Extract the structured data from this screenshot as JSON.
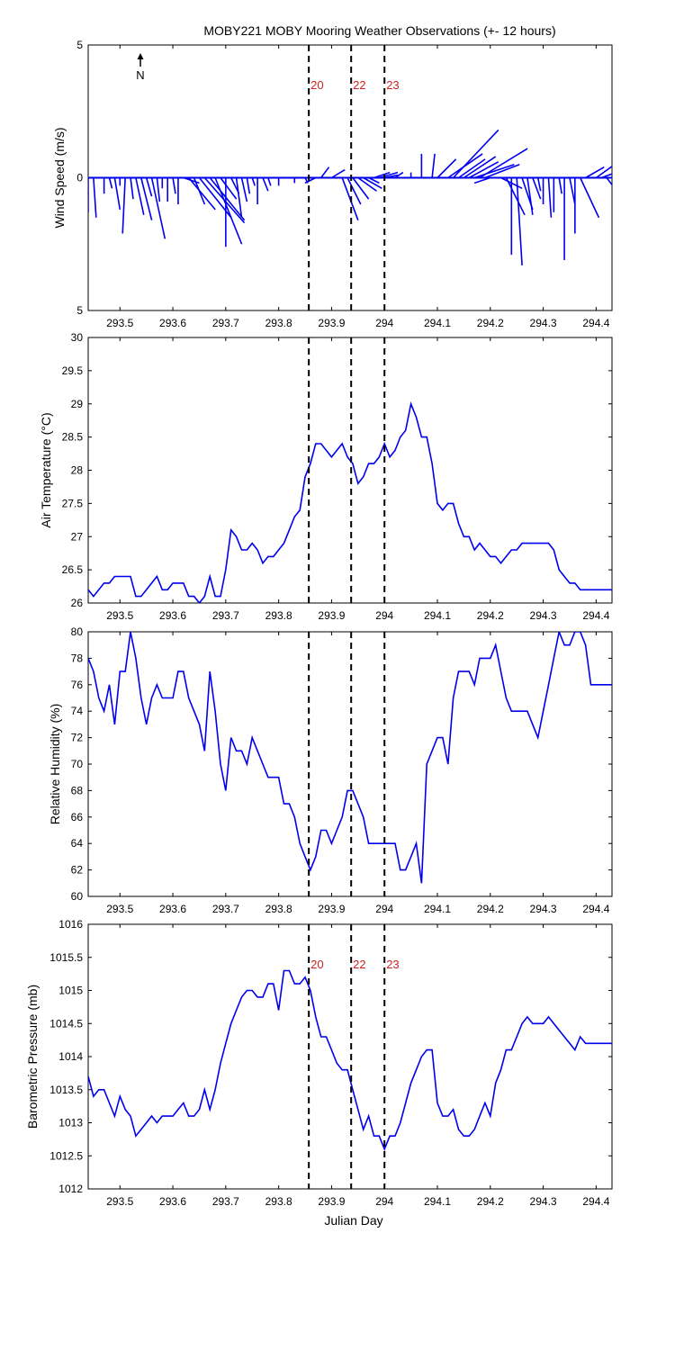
{
  "figure_title": "MOBY221 MOBY Mooring Weather Observations (+- 12 hours)",
  "north_label": "N",
  "x_axis_label": "Julian Day",
  "x_ticks": [
    "293.5",
    "293.6",
    "293.7",
    "293.8",
    "293.9",
    "294",
    "294.1",
    "294.2",
    "294.3",
    "294.4"
  ],
  "event_lines": [
    {
      "label": "20",
      "x": 293.857
    },
    {
      "label": "22",
      "x": 293.937
    },
    {
      "label": "23",
      "x": 294.0
    }
  ],
  "colors": {
    "series": "#0000ee",
    "event_label": "#cc2222",
    "axis": "#000000"
  },
  "chart_data": [
    {
      "type": "line",
      "name": "wind",
      "ylabel": "Wind Speed (m/s)",
      "yticks": [
        "5",
        "0",
        "5"
      ],
      "xlim": [
        293.44,
        294.43
      ],
      "ylim": [
        -5,
        5
      ],
      "show_event_labels": true,
      "note": "wind vectors (stick plot), each point [day, u, v]",
      "vectors": [
        [
          293.44,
          0.0,
          -1.3
        ],
        [
          293.45,
          0.1,
          -1.5
        ],
        [
          293.47,
          0.0,
          -0.6
        ],
        [
          293.48,
          0.1,
          -0.4
        ],
        [
          293.49,
          0.2,
          -1.2
        ],
        [
          293.5,
          0.0,
          -0.3
        ],
        [
          293.51,
          -0.1,
          -2.1
        ],
        [
          293.52,
          0.1,
          -0.8
        ],
        [
          293.53,
          0.3,
          -1.4
        ],
        [
          293.54,
          0.4,
          -1.6
        ],
        [
          293.55,
          0.2,
          -0.7
        ],
        [
          293.56,
          0.5,
          -2.3
        ],
        [
          293.57,
          0.1,
          -0.9
        ],
        [
          293.58,
          0.0,
          -0.4
        ],
        [
          293.59,
          0.0,
          -0.9
        ],
        [
          293.6,
          0.1,
          -0.6
        ],
        [
          293.61,
          0.0,
          -1.0
        ],
        [
          293.62,
          0.6,
          -0.2
        ],
        [
          293.63,
          1.0,
          -1.2
        ],
        [
          293.64,
          0.4,
          -1.0
        ],
        [
          293.65,
          1.2,
          -1.5
        ],
        [
          293.66,
          1.5,
          -1.7
        ],
        [
          293.67,
          1.3,
          -1.6
        ],
        [
          293.68,
          1.0,
          -2.5
        ],
        [
          293.69,
          0.6,
          -0.8
        ],
        [
          293.7,
          0.0,
          -2.6
        ],
        [
          293.71,
          0.3,
          -0.6
        ],
        [
          293.72,
          0.2,
          -1.5
        ],
        [
          293.73,
          0.2,
          -0.9
        ],
        [
          293.74,
          0.1,
          -0.6
        ],
        [
          293.75,
          0.1,
          -0.3
        ],
        [
          293.76,
          0.0,
          -1.0
        ],
        [
          293.77,
          0.2,
          -0.5
        ],
        [
          293.78,
          0.1,
          -0.3
        ],
        [
          293.8,
          0.0,
          -0.3
        ],
        [
          293.83,
          0.0,
          -0.2
        ],
        [
          293.85,
          0.1,
          -0.2
        ],
        [
          293.87,
          -0.4,
          -0.2
        ],
        [
          293.88,
          0.3,
          0.4
        ],
        [
          293.9,
          0.5,
          0.3
        ],
        [
          293.92,
          0.6,
          -1.6
        ],
        [
          293.93,
          0.5,
          -1.0
        ],
        [
          293.94,
          0.6,
          -0.8
        ],
        [
          293.95,
          0.7,
          -0.5
        ],
        [
          293.96,
          0.7,
          -0.4
        ],
        [
          293.97,
          0.4,
          -0.2
        ],
        [
          293.98,
          0.6,
          0.2
        ],
        [
          293.99,
          0.7,
          0.2
        ],
        [
          294.0,
          0.5,
          0.1
        ],
        [
          294.02,
          0.3,
          0.2
        ],
        [
          294.05,
          0.0,
          0.2
        ],
        [
          294.07,
          0.0,
          0.9
        ],
        [
          294.09,
          0.1,
          0.9
        ],
        [
          294.1,
          0.7,
          0.7
        ],
        [
          294.12,
          1.3,
          0.9
        ],
        [
          294.13,
          1.7,
          1.8
        ],
        [
          294.14,
          1.0,
          0.7
        ],
        [
          294.15,
          1.2,
          0.8
        ],
        [
          294.16,
          1.1,
          0.6
        ],
        [
          294.17,
          1.5,
          0.5
        ],
        [
          294.18,
          1.8,
          1.1
        ],
        [
          294.19,
          1.3,
          0.5
        ],
        [
          294.2,
          -0.6,
          -0.2
        ],
        [
          294.22,
          0.8,
          -0.4
        ],
        [
          294.23,
          0.7,
          -1.4
        ],
        [
          294.24,
          0.0,
          -2.9
        ],
        [
          294.25,
          0.2,
          -3.3
        ],
        [
          294.26,
          0.4,
          -1.2
        ],
        [
          294.27,
          0.2,
          -1.4
        ],
        [
          294.28,
          0.3,
          -0.8
        ],
        [
          294.29,
          0.1,
          -0.5
        ],
        [
          294.3,
          0.0,
          -1.0
        ],
        [
          294.31,
          0.1,
          -1.5
        ],
        [
          294.32,
          0.0,
          -1.3
        ],
        [
          294.33,
          0.1,
          -0.6
        ],
        [
          294.34,
          0.0,
          -3.1
        ],
        [
          294.35,
          0.2,
          -1.0
        ],
        [
          294.36,
          0.0,
          -2.1
        ],
        [
          294.37,
          0.7,
          -1.5
        ],
        [
          294.38,
          0.7,
          0.4
        ],
        [
          294.4,
          0.7,
          0.5
        ],
        [
          294.41,
          1.1,
          0.4
        ],
        [
          294.42,
          0.6,
          -0.8
        ],
        [
          294.43,
          0.5,
          -1.0
        ]
      ]
    },
    {
      "type": "line",
      "name": "air_temperature",
      "ylabel": "Air Temperature (°C)",
      "yticks": [
        "26",
        "26.5",
        "27",
        "27.5",
        "28",
        "28.5",
        "29",
        "29.5",
        "30"
      ],
      "xlim": [
        293.44,
        294.43
      ],
      "ylim": [
        26,
        30
      ],
      "show_event_labels": false,
      "x": [
        293.44,
        293.45,
        293.47,
        293.48,
        293.49,
        293.5,
        293.52,
        293.53,
        293.54,
        293.55,
        293.56,
        293.57,
        293.58,
        293.59,
        293.6,
        293.61,
        293.62,
        293.63,
        293.64,
        293.65,
        293.66,
        293.67,
        293.68,
        293.69,
        293.7,
        293.71,
        293.72,
        293.73,
        293.74,
        293.75,
        293.76,
        293.77,
        293.78,
        293.79,
        293.8,
        293.81,
        293.82,
        293.83,
        293.84,
        293.85,
        293.86,
        293.87,
        293.88,
        293.89,
        293.9,
        293.91,
        293.92,
        293.93,
        293.94,
        293.95,
        293.96,
        293.97,
        293.98,
        293.99,
        294.0,
        294.01,
        294.02,
        294.03,
        294.04,
        294.05,
        294.06,
        294.07,
        294.08,
        294.09,
        294.1,
        294.11,
        294.12,
        294.13,
        294.14,
        294.15,
        294.16,
        294.17,
        294.18,
        294.19,
        294.2,
        294.21,
        294.22,
        294.23,
        294.24,
        294.25,
        294.26,
        294.27,
        294.28,
        294.29,
        294.3,
        294.31,
        294.32,
        294.33,
        294.34,
        294.35,
        294.36,
        294.37,
        294.38,
        294.39,
        294.4,
        294.41,
        294.42,
        294.43
      ],
      "values": [
        26.2,
        26.1,
        26.3,
        26.3,
        26.4,
        26.4,
        26.4,
        26.1,
        26.1,
        26.2,
        26.3,
        26.4,
        26.2,
        26.2,
        26.3,
        26.3,
        26.3,
        26.1,
        26.1,
        26.0,
        26.1,
        26.4,
        26.1,
        26.1,
        26.5,
        27.1,
        27.0,
        26.8,
        26.8,
        26.9,
        26.8,
        26.6,
        26.7,
        26.7,
        26.8,
        26.9,
        27.1,
        27.3,
        27.4,
        27.9,
        28.1,
        28.4,
        28.4,
        28.3,
        28.2,
        28.3,
        28.4,
        28.2,
        28.1,
        27.8,
        27.9,
        28.1,
        28.1,
        28.2,
        28.4,
        28.2,
        28.3,
        28.5,
        28.6,
        29.0,
        28.8,
        28.5,
        28.5,
        28.1,
        27.5,
        27.4,
        27.5,
        27.5,
        27.2,
        27.0,
        27.0,
        26.8,
        26.9,
        26.8,
        26.7,
        26.7,
        26.6,
        26.7,
        26.8,
        26.8,
        26.9,
        26.9,
        26.9,
        26.9,
        26.9,
        26.9,
        26.8,
        26.5,
        26.4,
        26.3,
        26.3,
        26.2,
        26.2,
        26.2,
        26.2,
        26.2,
        26.2,
        26.2
      ]
    },
    {
      "type": "line",
      "name": "relative_humidity",
      "ylabel": "Relative Humidity (%)",
      "yticks": [
        "60",
        "62",
        "64",
        "66",
        "68",
        "70",
        "72",
        "74",
        "76",
        "78",
        "80"
      ],
      "xlim": [
        293.44,
        294.43
      ],
      "ylim": [
        60,
        80
      ],
      "show_event_labels": false,
      "x": [
        293.44,
        293.45,
        293.46,
        293.47,
        293.48,
        293.49,
        293.5,
        293.51,
        293.52,
        293.53,
        293.54,
        293.55,
        293.56,
        293.57,
        293.58,
        293.59,
        293.6,
        293.61,
        293.62,
        293.63,
        293.64,
        293.65,
        293.66,
        293.67,
        293.68,
        293.69,
        293.7,
        293.71,
        293.72,
        293.73,
        293.74,
        293.75,
        293.76,
        293.77,
        293.78,
        293.79,
        293.8,
        293.81,
        293.82,
        293.83,
        293.84,
        293.85,
        293.86,
        293.87,
        293.88,
        293.89,
        293.9,
        293.91,
        293.92,
        293.93,
        293.94,
        293.95,
        293.96,
        293.97,
        293.98,
        293.99,
        294.0,
        294.01,
        294.02,
        294.03,
        294.04,
        294.05,
        294.06,
        294.07,
        294.08,
        294.09,
        294.1,
        294.11,
        294.12,
        294.13,
        294.14,
        294.15,
        294.16,
        294.17,
        294.18,
        294.19,
        294.2,
        294.21,
        294.22,
        294.23,
        294.24,
        294.25,
        294.26,
        294.27,
        294.28,
        294.29,
        294.3,
        294.31,
        294.32,
        294.33,
        294.34,
        294.35,
        294.36,
        294.37,
        294.38,
        294.39,
        294.4,
        294.41,
        294.42,
        294.43
      ],
      "values": [
        78,
        77,
        75,
        74,
        76,
        73,
        77,
        77,
        80,
        78,
        75,
        73,
        75,
        76,
        75,
        75,
        75,
        77,
        77,
        75,
        74,
        73,
        71,
        77,
        74,
        70,
        68,
        72,
        71,
        71,
        70,
        72,
        71,
        70,
        69,
        69,
        69,
        67,
        67,
        66,
        64,
        63,
        62,
        63,
        65,
        65,
        64,
        65,
        66,
        68,
        68,
        67,
        66,
        64,
        64,
        64,
        64,
        64,
        64,
        62,
        62,
        63,
        64,
        61,
        70,
        71,
        72,
        72,
        70,
        75,
        77,
        77,
        77,
        76,
        78,
        78,
        78,
        79,
        77,
        75,
        74,
        74,
        74,
        74,
        73,
        72,
        74,
        76,
        78,
        80,
        79,
        79,
        80,
        80,
        79,
        76,
        76,
        76,
        76,
        76
      ]
    },
    {
      "type": "line",
      "name": "barometric_pressure",
      "ylabel": "Barometric Pressure (mb)",
      "yticks": [
        "1012",
        "1012.5",
        "1013",
        "1013.5",
        "1014",
        "1014.5",
        "1015",
        "1015.5",
        "1016"
      ],
      "xlim": [
        293.44,
        294.43
      ],
      "ylim": [
        1012,
        1016
      ],
      "show_event_labels": true,
      "x": [
        293.44,
        293.45,
        293.46,
        293.47,
        293.48,
        293.49,
        293.5,
        293.51,
        293.52,
        293.53,
        293.54,
        293.55,
        293.56,
        293.57,
        293.58,
        293.59,
        293.6,
        293.61,
        293.62,
        293.63,
        293.64,
        293.65,
        293.66,
        293.67,
        293.68,
        293.69,
        293.7,
        293.71,
        293.72,
        293.73,
        293.74,
        293.75,
        293.76,
        293.77,
        293.78,
        293.79,
        293.8,
        293.81,
        293.82,
        293.83,
        293.84,
        293.85,
        293.86,
        293.87,
        293.88,
        293.89,
        293.9,
        293.91,
        293.92,
        293.93,
        293.94,
        293.95,
        293.96,
        293.97,
        293.98,
        293.99,
        294.0,
        294.01,
        294.02,
        294.03,
        294.04,
        294.05,
        294.06,
        294.07,
        294.08,
        294.09,
        294.1,
        294.11,
        294.12,
        294.13,
        294.14,
        294.15,
        294.16,
        294.17,
        294.18,
        294.19,
        294.2,
        294.21,
        294.22,
        294.23,
        294.24,
        294.25,
        294.26,
        294.27,
        294.28,
        294.29,
        294.3,
        294.31,
        294.32,
        294.33,
        294.34,
        294.35,
        294.36,
        294.37,
        294.38,
        294.39,
        294.4,
        294.41,
        294.42,
        294.43
      ],
      "values": [
        1013.7,
        1013.4,
        1013.5,
        1013.5,
        1013.3,
        1013.1,
        1013.4,
        1013.2,
        1013.1,
        1012.8,
        1012.9,
        1013.0,
        1013.1,
        1013.0,
        1013.1,
        1013.1,
        1013.1,
        1013.2,
        1013.3,
        1013.1,
        1013.1,
        1013.2,
        1013.5,
        1013.2,
        1013.5,
        1013.9,
        1014.2,
        1014.5,
        1014.7,
        1014.9,
        1015.0,
        1015.0,
        1014.9,
        1014.9,
        1015.1,
        1015.1,
        1014.7,
        1015.3,
        1015.3,
        1015.1,
        1015.1,
        1015.2,
        1015.0,
        1014.6,
        1014.3,
        1014.3,
        1014.1,
        1013.9,
        1013.8,
        1013.8,
        1013.5,
        1013.2,
        1012.9,
        1013.1,
        1012.8,
        1012.8,
        1012.6,
        1012.8,
        1012.8,
        1013.0,
        1013.3,
        1013.6,
        1013.8,
        1014.0,
        1014.1,
        1014.1,
        1013.3,
        1013.1,
        1013.1,
        1013.2,
        1012.9,
        1012.8,
        1012.8,
        1012.9,
        1013.1,
        1013.3,
        1013.1,
        1013.6,
        1013.8,
        1014.1,
        1014.1,
        1014.3,
        1014.5,
        1014.6,
        1014.5,
        1014.5,
        1014.5,
        1014.6,
        1014.5,
        1014.4,
        1014.3,
        1014.2,
        1014.1,
        1014.3,
        1014.2,
        1014.2,
        1014.2,
        1014.2,
        1014.2,
        1014.2
      ]
    }
  ]
}
